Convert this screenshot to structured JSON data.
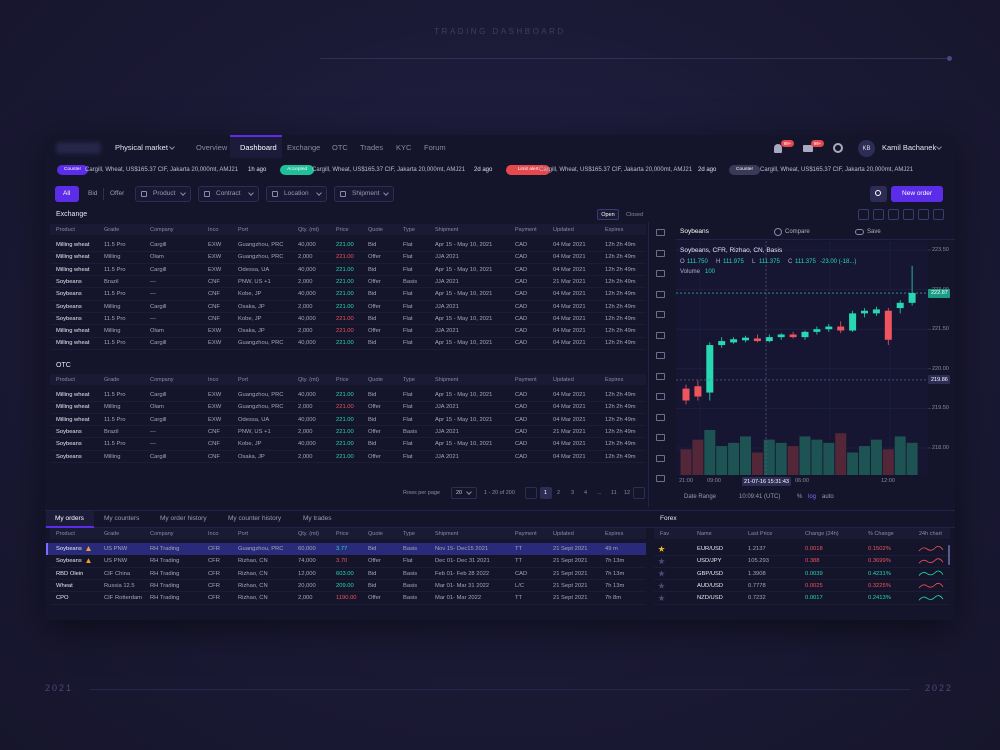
{
  "page_title": "TRADING DASHBOARD",
  "years": [
    "2021",
    "2022"
  ],
  "nav": {
    "market": "Physical market",
    "tabs": [
      "Overview",
      "Dashboard",
      "Exchange",
      "OTC",
      "Trades",
      "KYC",
      "Forum"
    ],
    "active_tab": 1,
    "badges": [
      "99+",
      "99+"
    ],
    "initials": "KB",
    "user": "Kamil Bachanek"
  },
  "ticker": [
    {
      "tag": "Counter",
      "color": "#5b2de8",
      "text": "Cargill, Wheat, US$165.37 CIF, Jakarta 20,000mt, AMJ21",
      "time": "1h ago"
    },
    {
      "tag": "Accepted",
      "color": "#1fbf9a",
      "text": "Cargill, Wheat, US$165.37 CIF, Jakarta 20,000mt, AMJ21",
      "time": "2d ago"
    },
    {
      "tag": "Limit alert",
      "color": "#e5484d",
      "text": "Cargill, Wheat, US$165.37 CIF, Jakarta 20,000mt, AMJ21",
      "time": "2d ago"
    },
    {
      "tag": "Counter",
      "color": "#3a3a58",
      "text": "Cargill, Wheat, US$165.37 CIF, Jakarta 20,000mt, AMJ21"
    }
  ],
  "filters": {
    "sides": [
      "All",
      "Bid",
      "Offer"
    ],
    "dropdowns": [
      "Product",
      "Contract",
      "Location",
      "Shipment"
    ],
    "new_order": "New order"
  },
  "columns": [
    "Product",
    "Grade",
    "Company",
    "Inco",
    "Port",
    "Qty. (mt)",
    "Price",
    "Quote",
    "Type",
    "Shipment",
    "Payment",
    "Updated",
    "Expires"
  ],
  "exchange": {
    "title": "Exchange",
    "toggle": [
      "Open",
      "Closed"
    ],
    "rows": [
      {
        "cells": [
          "Milling wheat",
          "11.5 Pro",
          "Cargill",
          "EXW",
          "Guangzhou, PRC",
          "40,000",
          "221.00",
          "Bid",
          "Flat",
          "Apr 15 - May 10, 2021",
          "CAD",
          "04 Mar 2021",
          "12h 2h 49m"
        ],
        "price_color": "#26d9b3"
      },
      {
        "cells": [
          "Milling wheat",
          "Milling",
          "Olam",
          "EXW",
          "Guangzhou, PRC",
          "2,000",
          "221.00",
          "Offer",
          "Flat",
          "JJA 2021",
          "CAD",
          "04 Mar 2021",
          "12h 2h 49m"
        ],
        "price_color": "#f0545f"
      },
      {
        "cells": [
          "Milling wheat",
          "11.5 Pro",
          "Cargill",
          "EXW",
          "Odessa, UA",
          "40,000",
          "221.00",
          "Bid",
          "Flat",
          "Apr 15 - May 10, 2021",
          "CAD",
          "04 Mar 2021",
          "12h 2h 49m"
        ],
        "price_color": "#26d9b3"
      },
      {
        "cells": [
          "Soybeans",
          "Brazil",
          "—",
          "CNF",
          "PNW, US +1",
          "2,000",
          "221.00",
          "Offer",
          "Basis",
          "JJA 2021",
          "CAD",
          "21 Mar 2021",
          "12h 2h 49m"
        ],
        "price_color": "#26d9b3"
      },
      {
        "cells": [
          "Soybeans",
          "11.5 Pro",
          "—",
          "CNF",
          "Kobe, JP",
          "40,000",
          "221.00",
          "Bid",
          "Flat",
          "Apr 15 - May 10, 2021",
          "CAD",
          "04 Mar 2021",
          "12h 2h 49m"
        ],
        "price_color": "#26d9b3"
      },
      {
        "cells": [
          "Soybeans",
          "Milling",
          "Cargill",
          "CNF",
          "Osaka, JP",
          "2,000",
          "221.00",
          "Offer",
          "Flat",
          "JJA 2021",
          "CAD",
          "04 Mar 2021",
          "12h 2h 49m"
        ],
        "price_color": "#26d9b3"
      },
      {
        "cells": [
          "Soybeans",
          "11.5 Pro",
          "—",
          "CNF",
          "Kobe, JP",
          "40,000",
          "221.00",
          "Bid",
          "Flat",
          "Apr 15 - May 10, 2021",
          "CAD",
          "04 Mar 2021",
          "12h 2h 49m"
        ],
        "price_color": "#f0545f"
      },
      {
        "cells": [
          "Milling wheat",
          "Milling",
          "Olam",
          "EXW",
          "Osaka, JP",
          "2,000",
          "221.00",
          "Offer",
          "Flat",
          "JJA 2021",
          "CAD",
          "04 Mar 2021",
          "12h 2h 49m"
        ],
        "price_color": "#f0545f"
      },
      {
        "cells": [
          "Milling wheat",
          "11.5 Pro",
          "Cargill",
          "EXW",
          "Guangzhou, PRC",
          "40,000",
          "221.00",
          "Bid",
          "Flat",
          "Apr 15 - May 10, 2021",
          "CAD",
          "04 Mar 2021",
          "12h 2h 49m"
        ],
        "price_color": "#26d9b3"
      }
    ]
  },
  "otc": {
    "title": "OTC",
    "rows": [
      {
        "cells": [
          "Milling wheat",
          "11.5 Pro",
          "Cargill",
          "EXW",
          "Guangzhou, PRC",
          "40,000",
          "221.00",
          "Bid",
          "Flat",
          "Apr 15 - May 10, 2021",
          "CAD",
          "04 Mar 2021",
          "12h 2h 49m"
        ],
        "price_color": "#26d9b3"
      },
      {
        "cells": [
          "Milling wheat",
          "Milling",
          "Olam",
          "EXW",
          "Guangzhou, PRC",
          "2,000",
          "221.00",
          "Offer",
          "Flat",
          "JJA 2021",
          "CAD",
          "04 Mar 2021",
          "12h 2h 49m"
        ],
        "price_color": "#f0545f"
      },
      {
        "cells": [
          "Milling wheat",
          "11.5 Pro",
          "Cargill",
          "EXW",
          "Odessa, UA",
          "40,000",
          "221.00",
          "Bid",
          "Flat",
          "Apr 15 - May 10, 2021",
          "CAD",
          "04 Mar 2021",
          "12h 2h 49m"
        ],
        "price_color": "#26d9b3"
      },
      {
        "cells": [
          "Soybeans",
          "Brazil",
          "—",
          "CNF",
          "PNW, US +1",
          "2,000",
          "221.00",
          "Offer",
          "Basis",
          "JJA 2021",
          "CAD",
          "21 Mar 2021",
          "12h 2h 49m"
        ],
        "price_color": "#26d9b3"
      },
      {
        "cells": [
          "Soybeans",
          "11.5 Pro",
          "—",
          "CNF",
          "Kobe, JP",
          "40,000",
          "221.00",
          "Bid",
          "Flat",
          "Apr 15 - May 10, 2021",
          "CAD",
          "04 Mar 2021",
          "12h 2h 49m"
        ],
        "price_color": "#26d9b3"
      },
      {
        "cells": [
          "Soybeans",
          "Milling",
          "Cargill",
          "CNF",
          "Osaka, JP",
          "2,000",
          "221.00",
          "Offer",
          "Flat",
          "JJA 2021",
          "CAD",
          "04 Mar 2021",
          "12h 2h 49m"
        ],
        "price_color": "#26d9b3"
      }
    ]
  },
  "pagination": {
    "rows_per_page": "Rows per page",
    "per_page": "20",
    "range": "1 - 20 of 200",
    "pages": [
      "1",
      "2",
      "3",
      "4",
      "...",
      "11",
      "12"
    ],
    "active_page": 0
  },
  "chart": {
    "symbol": "Soybeans",
    "compare": "Compare",
    "save": "Save",
    "title": "Soybeans, CFR, Rizhao, CN, Basis",
    "ohlc": [
      {
        "label": "O",
        "value": "111.750"
      },
      {
        "label": "H",
        "value": "111.975"
      },
      {
        "label": "L",
        "value": "111.375"
      },
      {
        "label": "C",
        "value": "111.375"
      }
    ],
    "change": "-23.00 (-18...)",
    "volume_label": "Volume",
    "volume_value": "100",
    "price_ticks": [
      {
        "value": 223.5,
        "label": "223.50"
      },
      {
        "value": 223.0,
        "label": "223.00"
      },
      {
        "value": 221.5,
        "label": "221.50"
      },
      {
        "value": 220.0,
        "label": "220.00"
      },
      {
        "value": 219.5,
        "label": "219.50"
      },
      {
        "value": 218.0,
        "label": "218.00"
      }
    ],
    "price_tags": [
      222.87,
      219.86
    ],
    "time_labels": [
      "21:00",
      "09:00",
      "06:00",
      "12:00"
    ],
    "cursor_time": "21-07-16 15:31:43",
    "footer": [
      "Date Range",
      "10:09:41 (UTC)",
      "%",
      "log",
      "auto"
    ],
    "up_color": "#26d9b3",
    "down_color": "#f0545f",
    "candles": [
      {
        "o": 219.75,
        "h": 219.8,
        "l": 219.55,
        "c": 219.6
      },
      {
        "o": 219.78,
        "h": 219.85,
        "l": 219.6,
        "c": 219.65
      },
      {
        "o": 219.7,
        "h": 221.0,
        "l": 219.6,
        "c": 220.9
      },
      {
        "o": 220.9,
        "h": 221.2,
        "l": 220.8,
        "c": 221.05
      },
      {
        "o": 221.0,
        "h": 221.2,
        "l": 220.95,
        "c": 221.12
      },
      {
        "o": 221.08,
        "h": 221.25,
        "l": 221.0,
        "c": 221.18
      },
      {
        "o": 221.15,
        "h": 221.3,
        "l": 221.0,
        "c": 221.05
      },
      {
        "o": 221.05,
        "h": 221.3,
        "l": 221.0,
        "c": 221.2
      },
      {
        "o": 221.2,
        "h": 221.35,
        "l": 221.1,
        "c": 221.3
      },
      {
        "o": 221.3,
        "h": 221.4,
        "l": 221.15,
        "c": 221.2
      },
      {
        "o": 221.2,
        "h": 221.45,
        "l": 221.1,
        "c": 221.4
      },
      {
        "o": 221.4,
        "h": 221.6,
        "l": 221.3,
        "c": 221.5
      },
      {
        "o": 221.5,
        "h": 221.7,
        "l": 221.4,
        "c": 221.6
      },
      {
        "o": 221.6,
        "h": 221.8,
        "l": 221.35,
        "c": 221.45
      },
      {
        "o": 221.45,
        "h": 222.2,
        "l": 221.4,
        "c": 222.1
      },
      {
        "o": 222.1,
        "h": 222.3,
        "l": 221.95,
        "c": 222.2
      },
      {
        "o": 222.1,
        "h": 222.35,
        "l": 222.0,
        "c": 222.25
      },
      {
        "o": 222.2,
        "h": 222.3,
        "l": 220.9,
        "c": 221.1
      },
      {
        "o": 222.3,
        "h": 222.6,
        "l": 222.1,
        "c": 222.5
      },
      {
        "o": 222.5,
        "h": 223.3,
        "l": 222.4,
        "c": 222.87
      }
    ],
    "volumes": [
      40,
      55,
      70,
      45,
      50,
      60,
      35,
      55,
      50,
      45,
      60,
      55,
      50,
      65,
      35,
      45,
      55,
      40,
      60,
      50
    ]
  },
  "orders": {
    "tabs": [
      "My orders",
      "My counters",
      "My order history",
      "My counter history",
      "My trades"
    ],
    "active_tab": 0,
    "selected_row": 0,
    "rows": [
      {
        "cells": [
          "Soybeans",
          "US PNW",
          "RH Trading",
          "CFR",
          "Guangzhou, PRC",
          "60,000",
          "3.77",
          "Bid",
          "Basis",
          "Nov 15- Dec15 2021",
          "TT",
          "21 Sept 2021",
          "49 m"
        ],
        "price_color": "#26d9b3",
        "alert": true
      },
      {
        "cells": [
          "Soybeans",
          "US PNW",
          "RH Trading",
          "CFR",
          "Rizhao, CN",
          "74,000",
          "3.70",
          "Offer",
          "Flat",
          "Dec 01- Dec 31 2021",
          "TT",
          "21 Sept 2021",
          "7h 13m"
        ],
        "price_color": "#f0545f",
        "alert": true
      },
      {
        "cells": [
          "RBD Olein",
          "CIF China",
          "RH Trading",
          "CFR",
          "Rizhao, CN",
          "12,000",
          "603.00",
          "Bid",
          "Basis",
          "Feb 01- Feb 28 2022",
          "CAD",
          "21 Sept 2021",
          "7h 13m"
        ],
        "price_color": "#26d9b3",
        "alert": false
      },
      {
        "cells": [
          "Wheat",
          "Russia 12.5",
          "RH Trading",
          "CFR",
          "Rizhao, CN",
          "20,000",
          "209.00",
          "Bid",
          "Basis",
          "Mar 01- Mar 31 2022",
          "L/C",
          "21 Sept 2021",
          "7h 13m"
        ],
        "price_color": "#26d9b3",
        "alert": false
      },
      {
        "cells": [
          "CPO",
          "CIF Rotterdam",
          "RH Trading",
          "CFR",
          "Rizhao, CN",
          "2,000",
          "1190.00",
          "Offer",
          "Basis",
          "Mar 01- Mar 2022",
          "TT",
          "21 Sept 2021",
          "7h 8m"
        ],
        "price_color": "#f0545f",
        "alert": false
      }
    ]
  },
  "forex": {
    "title": "Forex",
    "columns": [
      "Fav",
      "Name",
      "Last Price",
      "Change (24h)",
      "% Change",
      "24h chart"
    ],
    "rows": [
      {
        "name": "EUR/USD",
        "last": "1.2137",
        "change": "0.0018",
        "pct": "0.1502%",
        "color": "#f0545f",
        "fav": true
      },
      {
        "name": "USD/JPY",
        "last": "105.293",
        "change": "0.388",
        "pct": "0.3699%",
        "color": "#f0545f",
        "fav": false
      },
      {
        "name": "GBP/USD",
        "last": "1.3908",
        "change": "0.0039",
        "pct": "0.4231%",
        "color": "#26d9b3",
        "fav": false
      },
      {
        "name": "AUD/USD",
        "last": "0.7778",
        "change": "0.0025",
        "pct": "0.3225%",
        "color": "#f0545f",
        "fav": false
      },
      {
        "name": "NZD/USD",
        "last": "0.7232",
        "change": "0.0017",
        "pct": "0.2413%",
        "color": "#26d9b3",
        "fav": false
      }
    ]
  }
}
